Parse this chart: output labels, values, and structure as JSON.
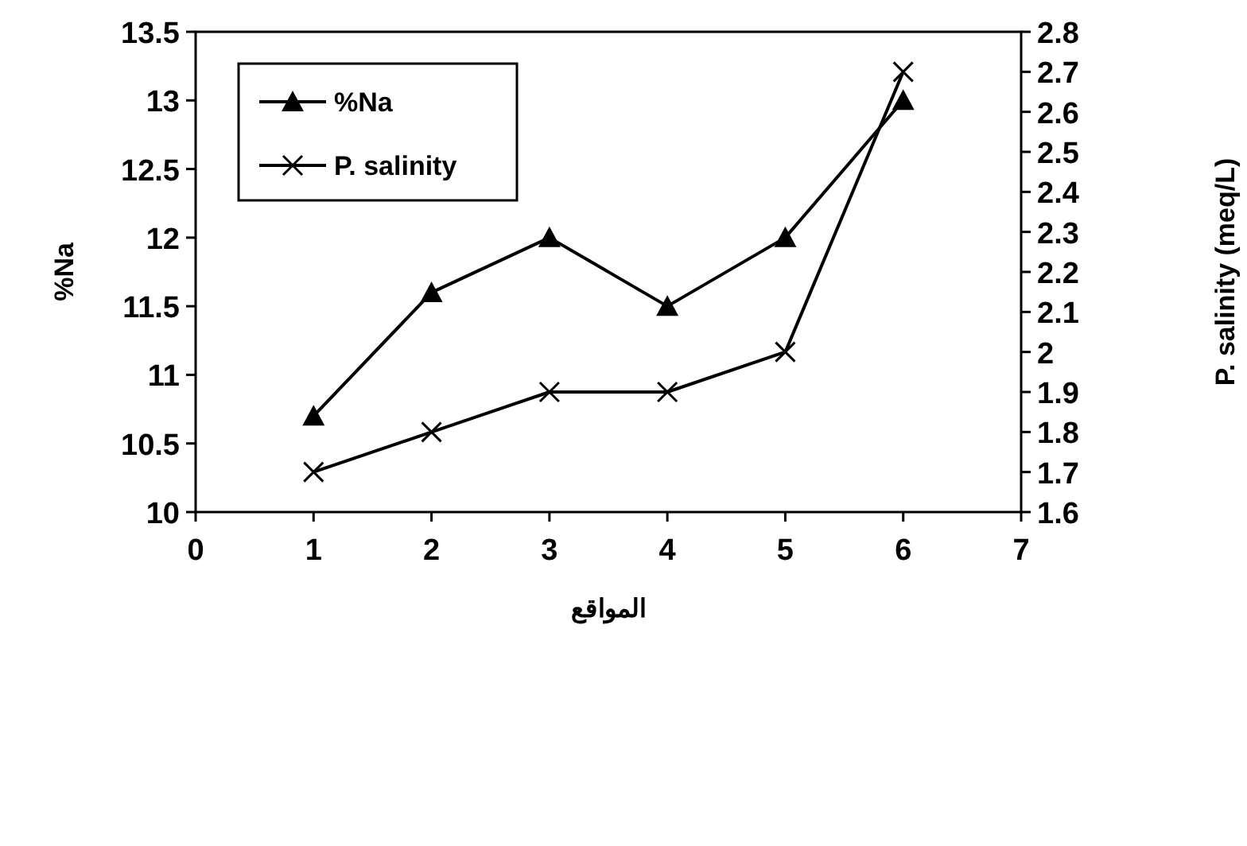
{
  "chart_data": {
    "type": "line",
    "xlabel": "المواقع",
    "ylabel": "%Na",
    "y2label": "P. salinity (meq/L)",
    "x": [
      1,
      2,
      3,
      4,
      5,
      6
    ],
    "series": [
      {
        "name": "%Na",
        "color": "#000000",
        "marker": "triangle",
        "values": [
          10.7,
          11.6,
          12.0,
          11.5,
          12.0,
          13.0
        ]
      },
      {
        "name": "P. salinity",
        "color": "#000000",
        "marker": "cross",
        "axis": "y2",
        "values": [
          1.7,
          1.8,
          1.9,
          1.9,
          2.0,
          2.7
        ]
      }
    ],
    "xlim": [
      0,
      7
    ],
    "xticks": [
      0,
      1,
      2,
      3,
      4,
      5,
      6,
      7
    ],
    "ylim": [
      10,
      13.5
    ],
    "yticks": [
      10,
      10.5,
      11,
      11.5,
      12,
      12.5,
      13,
      13.5
    ],
    "y2lim": [
      1.6,
      2.8
    ],
    "y2ticks": [
      1.6,
      1.7,
      1.8,
      1.9,
      2,
      2.1,
      2.2,
      2.3,
      2.4,
      2.5,
      2.6,
      2.7,
      2.8
    ],
    "legend": "top left",
    "grid": false,
    "line_style": "solid"
  }
}
